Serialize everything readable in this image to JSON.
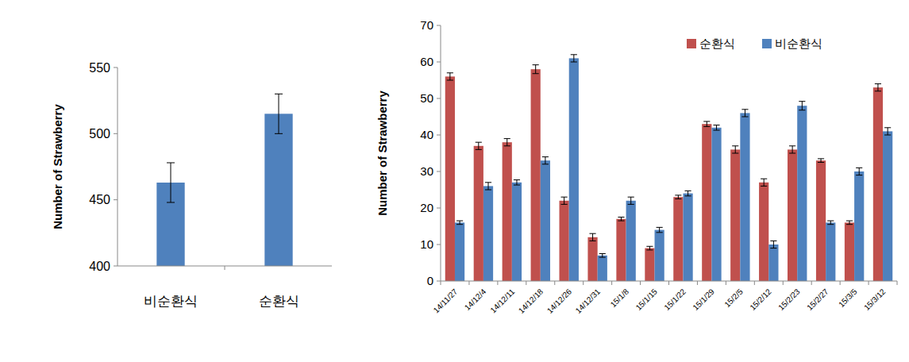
{
  "chart_data": [
    {
      "type": "bar",
      "y_label": "Number of Strawberry",
      "categories": [
        "비순환식",
        "순환식"
      ],
      "values": [
        463,
        515
      ],
      "errors": [
        15,
        15
      ],
      "color": "#4f81bd",
      "ylim": [
        400,
        550
      ],
      "yticks": [
        400,
        450,
        500,
        550
      ],
      "grid": false
    },
    {
      "type": "bar",
      "y_label": "Number of Strawberry",
      "categories": [
        "14/11/27",
        "14/12/4",
        "14/12/11",
        "14/12/18",
        "14/12/26",
        "14/12/31",
        "15/1/8",
        "15/1/15",
        "15/1/22",
        "15/1/29",
        "15/2/5",
        "15/2/12",
        "15/2/23",
        "15/2/27",
        "15/3/5",
        "15/3/12"
      ],
      "series": [
        {
          "name": "순환식",
          "color": "#c0504d",
          "values": [
            56,
            37,
            38,
            58,
            22,
            12,
            17,
            9,
            23,
            43,
            36,
            27,
            36,
            33,
            16,
            53
          ],
          "errors": [
            1,
            1,
            1,
            1.2,
            1,
            1,
            0.5,
            0.5,
            0.5,
            0.7,
            1,
            1,
            1,
            0.5,
            0.5,
            1
          ]
        },
        {
          "name": "비순환식",
          "color": "#4f81bd",
          "values": [
            16,
            26,
            27,
            33,
            61,
            7,
            22,
            14,
            24,
            42,
            46,
            10,
            48,
            16,
            30,
            41
          ],
          "errors": [
            0.5,
            1,
            0.7,
            1,
            1,
            0.5,
            1,
            0.7,
            0.7,
            0.7,
            1,
            1,
            1.2,
            0.5,
            1,
            1
          ]
        }
      ],
      "ylim": [
        0,
        70
      ],
      "yticks": [
        0,
        10,
        20,
        30,
        40,
        50,
        60,
        70
      ],
      "legend": "upper right",
      "grid": false
    }
  ]
}
